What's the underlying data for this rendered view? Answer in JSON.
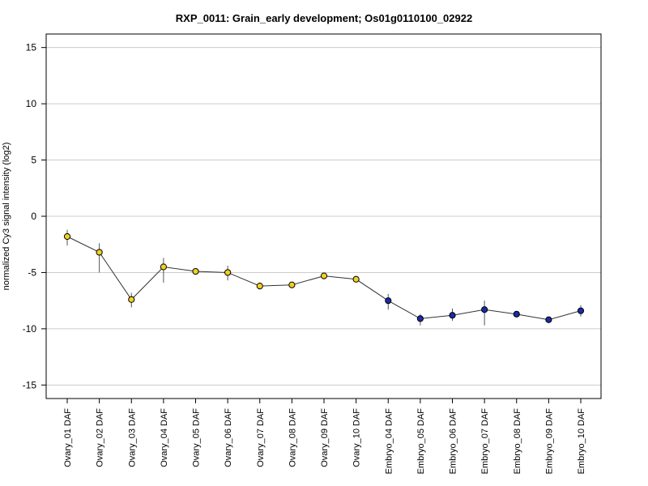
{
  "chart_data": {
    "type": "line",
    "title": "RXP_0011: Grain_early development; Os01g0110100_02922",
    "ylabel": "normalized Cy3 signal intensity (log2)",
    "xlabel": "",
    "ylim": [
      -16.2,
      16.2
    ],
    "yticks": [
      15,
      10,
      5,
      0,
      -5,
      -10,
      -15
    ],
    "grid": true,
    "categories": [
      "Ovary_01 DAF",
      "Ovary_02 DAF",
      "Ovary_03 DAF",
      "Ovary_04 DAF",
      "Ovary_05 DAF",
      "Ovary_06 DAF",
      "Ovary_07 DAF",
      "Ovary_08 DAF",
      "Ovary_09 DAF",
      "Ovary_10 DAF",
      "Embryo_04 DAF",
      "Embryo_05 DAF",
      "Embryo_06 DAF",
      "Embryo_07 DAF",
      "Embryo_08 DAF",
      "Embryo_09 DAF",
      "Embryo_10 DAF"
    ],
    "values": [
      -1.8,
      -3.2,
      -7.4,
      -4.5,
      -4.9,
      -5.0,
      -6.2,
      -6.1,
      -5.3,
      -5.6,
      -7.5,
      -9.1,
      -8.8,
      -8.3,
      -8.7,
      -9.2,
      -8.4
    ],
    "err_low": [
      -2.6,
      -5.0,
      -8.1,
      -5.9,
      -5.0,
      -5.7,
      -6.5,
      -6.2,
      -5.4,
      -5.8,
      -8.3,
      -9.7,
      -9.3,
      -9.7,
      -8.8,
      -9.3,
      -8.9
    ],
    "err_high": [
      -1.2,
      -2.4,
      -6.8,
      -3.7,
      -4.8,
      -4.4,
      -5.9,
      -5.9,
      -5.2,
      -5.4,
      -6.9,
      -8.7,
      -8.2,
      -7.5,
      -8.5,
      -9.1,
      -7.9
    ],
    "point_colors": [
      "#f0d020",
      "#f0d020",
      "#f0d020",
      "#f0d020",
      "#f0d020",
      "#f0d020",
      "#f0d020",
      "#f0d020",
      "#f0d020",
      "#f0d020",
      "#1a2aa8",
      "#1a2aa8",
      "#1a2aa8",
      "#1a2aa8",
      "#1a2aa8",
      "#1a2aa8",
      "#1a2aa8"
    ],
    "line_color": "#333333",
    "grid_color": "#cccccc"
  }
}
